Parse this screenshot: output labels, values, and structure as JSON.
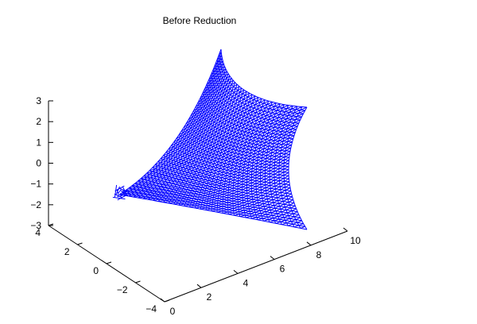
{
  "chart_data": {
    "type": "mesh3d",
    "title": "Before Reduction",
    "xlabel": "",
    "ylabel": "",
    "zlabel": "",
    "grid": false,
    "legend": "none",
    "mesh_color": "#0000ff",
    "x_axis": {
      "range": [
        0,
        10
      ],
      "ticks": [
        "0",
        "2",
        "4",
        "6",
        "8",
        "10"
      ]
    },
    "y_axis": {
      "range": [
        -4,
        4
      ],
      "ticks": [
        "−4",
        "−2",
        "0",
        "2",
        "4"
      ]
    },
    "z_axis": {
      "range": [
        -3,
        3
      ],
      "ticks": [
        "−3",
        "−2",
        "−1",
        "0",
        "1",
        "2",
        "3"
      ]
    },
    "surface": {
      "corners": [
        {
          "x": 0,
          "y": 0,
          "z": -1.6
        },
        {
          "x": 5,
          "y": 4,
          "z": 3
        },
        {
          "x": 10,
          "y": 0,
          "z": 1.5
        },
        {
          "x": 8,
          "y": -3,
          "z": -3
        }
      ]
    }
  }
}
